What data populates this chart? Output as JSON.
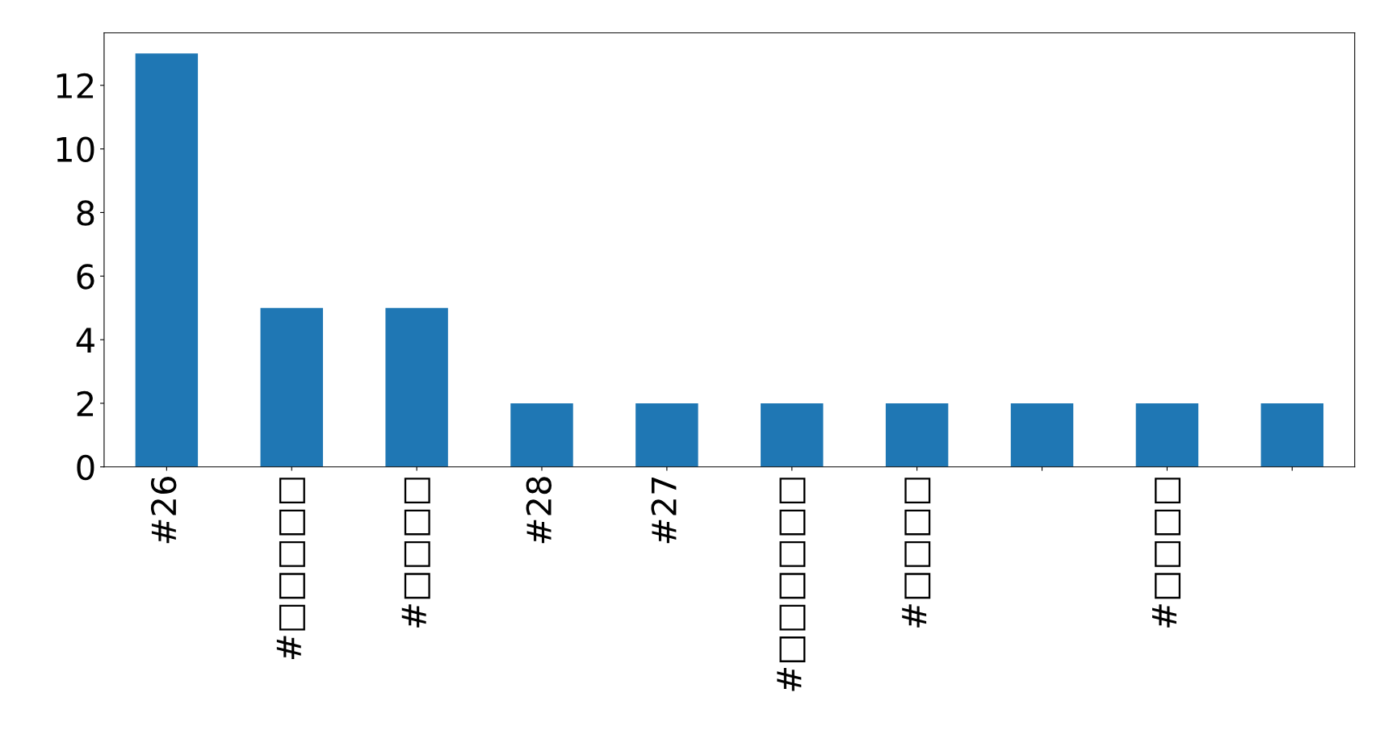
{
  "chart_data": {
    "type": "bar",
    "categories": [
      "#26",
      "#□□□□□",
      "#□□□□",
      "#28",
      "#27",
      "#□□□□□□",
      "#□□□□",
      null,
      "#□□□□",
      null
    ],
    "values": [
      13,
      5,
      5,
      2,
      2,
      2,
      2,
      2,
      2,
      2
    ],
    "color": "#1f77b4",
    "ylim": [
      0,
      13.65
    ],
    "yticks": [
      0,
      2,
      4,
      6,
      8,
      10,
      12
    ],
    "grid": false,
    "legend": false
  }
}
